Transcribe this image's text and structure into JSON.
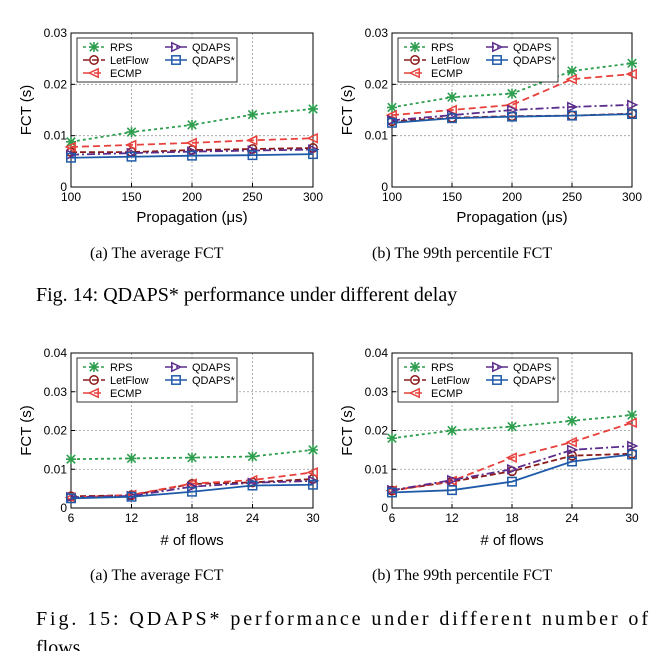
{
  "figures": [
    {
      "caption": "Fig. 14: QDAPS* performance under different delay"
    },
    {
      "caption_line1": "Fig. 15: QDAPS* performance under different number of",
      "caption_line2": "flows"
    }
  ],
  "chart_data": [
    {
      "type": "line",
      "subcaption": "(a) The average FCT",
      "xlabel": "Propagation (μs)",
      "ylabel": "FCT (s)",
      "x": [
        100,
        150,
        200,
        250,
        300
      ],
      "xlim": [
        100,
        300
      ],
      "ylim": [
        0,
        0.03
      ],
      "yticks": [
        0,
        0.01,
        0.02,
        0.03
      ],
      "ytick_labels": [
        "0",
        "0.01",
        "0.02",
        "0.03"
      ],
      "grid": true,
      "legend": "top-left",
      "series": [
        {
          "name": "RPS",
          "marker": "x",
          "color": "#2e9e4f",
          "dash": "3,3",
          "values": [
            0.0088,
            0.0107,
            0.0121,
            0.0141,
            0.0152
          ]
        },
        {
          "name": "LetFlow",
          "marker": "circle",
          "color": "#8b1a1a",
          "dash": "6,3",
          "values": [
            0.0068,
            0.0068,
            0.0072,
            0.0074,
            0.0076
          ]
        },
        {
          "name": "ECMP",
          "marker": "triangle-left",
          "color": "#e8413c",
          "dash": "7,4",
          "values": [
            0.0078,
            0.0082,
            0.0086,
            0.0091,
            0.0095
          ]
        },
        {
          "name": "QDAPS",
          "marker": "triangle-right",
          "color": "#5b2c8c",
          "dash": "8,3,2,3",
          "values": [
            0.0063,
            0.0066,
            0.0069,
            0.0071,
            0.0073
          ]
        },
        {
          "name": "QDAPS*",
          "marker": "square",
          "color": "#1f5aa8",
          "dash": "",
          "values": [
            0.0057,
            0.0059,
            0.0061,
            0.0062,
            0.0064
          ]
        }
      ]
    },
    {
      "type": "line",
      "subcaption": "(b) The 99th percentile FCT",
      "xlabel": "Propagation (μs)",
      "ylabel": "FCT (s)",
      "x": [
        100,
        150,
        200,
        250,
        300
      ],
      "xlim": [
        100,
        300
      ],
      "ylim": [
        0,
        0.03
      ],
      "yticks": [
        0,
        0.01,
        0.02,
        0.03
      ],
      "ytick_labels": [
        "0",
        "0.01",
        "0.02",
        "0.03"
      ],
      "grid": true,
      "legend": "top-left",
      "series": [
        {
          "name": "RPS",
          "marker": "x",
          "color": "#2e9e4f",
          "dash": "3,3",
          "values": [
            0.0155,
            0.0175,
            0.0182,
            0.0226,
            0.0241
          ]
        },
        {
          "name": "LetFlow",
          "marker": "circle",
          "color": "#8b1a1a",
          "dash": "6,3",
          "values": [
            0.0128,
            0.0135,
            0.0138,
            0.0139,
            0.0143
          ]
        },
        {
          "name": "ECMP",
          "marker": "triangle-left",
          "color": "#e8413c",
          "dash": "7,4",
          "values": [
            0.014,
            0.015,
            0.016,
            0.021,
            0.022
          ]
        },
        {
          "name": "QDAPS",
          "marker": "triangle-right",
          "color": "#5b2c8c",
          "dash": "8,3,2,3",
          "values": [
            0.013,
            0.014,
            0.015,
            0.0156,
            0.016
          ]
        },
        {
          "name": "QDAPS*",
          "marker": "square",
          "color": "#1f5aa8",
          "dash": "",
          "values": [
            0.0125,
            0.0134,
            0.0137,
            0.0139,
            0.0142
          ]
        }
      ]
    },
    {
      "type": "line",
      "subcaption": "(a) The average FCT",
      "xlabel": "# of flows",
      "ylabel": "FCT (s)",
      "x": [
        6,
        12,
        18,
        24,
        30
      ],
      "xlim": [
        6,
        30
      ],
      "ylim": [
        0,
        0.04
      ],
      "yticks": [
        0,
        0.01,
        0.02,
        0.03,
        0.04
      ],
      "ytick_labels": [
        "0",
        "0.01",
        "0.02",
        "0.03",
        "0.04"
      ],
      "grid": true,
      "legend": "top-left",
      "series": [
        {
          "name": "RPS",
          "marker": "x",
          "color": "#2e9e4f",
          "dash": "3,3",
          "values": [
            0.0126,
            0.0128,
            0.013,
            0.0133,
            0.015
          ]
        },
        {
          "name": "LetFlow",
          "marker": "circle",
          "color": "#8b1a1a",
          "dash": "6,3",
          "values": [
            0.003,
            0.0033,
            0.0062,
            0.0066,
            0.0075
          ]
        },
        {
          "name": "ECMP",
          "marker": "triangle-left",
          "color": "#e8413c",
          "dash": "7,4",
          "values": [
            0.0027,
            0.0034,
            0.0063,
            0.0072,
            0.0092
          ]
        },
        {
          "name": "QDAPS",
          "marker": "triangle-right",
          "color": "#5b2c8c",
          "dash": "8,3,2,3",
          "values": [
            0.0028,
            0.0031,
            0.0055,
            0.0065,
            0.007
          ]
        },
        {
          "name": "QDAPS*",
          "marker": "square",
          "color": "#1f5aa8",
          "dash": "",
          "values": [
            0.0025,
            0.0029,
            0.0042,
            0.0058,
            0.006
          ]
        }
      ]
    },
    {
      "type": "line",
      "subcaption": "(b) The 99th percentile FCT",
      "xlabel": "# of flows",
      "ylabel": "FCT (s)",
      "x": [
        6,
        12,
        18,
        24,
        30
      ],
      "xlim": [
        6,
        30
      ],
      "ylim": [
        0,
        0.04
      ],
      "yticks": [
        0,
        0.01,
        0.02,
        0.03,
        0.04
      ],
      "ytick_labels": [
        "0",
        "0.01",
        "0.02",
        "0.03",
        "0.04"
      ],
      "grid": true,
      "legend": "top-left",
      "series": [
        {
          "name": "RPS",
          "marker": "x",
          "color": "#2e9e4f",
          "dash": "3,3",
          "values": [
            0.018,
            0.02,
            0.021,
            0.0225,
            0.024
          ]
        },
        {
          "name": "LetFlow",
          "marker": "circle",
          "color": "#8b1a1a",
          "dash": "6,3",
          "values": [
            0.0045,
            0.0068,
            0.0095,
            0.0135,
            0.014
          ]
        },
        {
          "name": "ECMP",
          "marker": "triangle-left",
          "color": "#e8413c",
          "dash": "7,4",
          "values": [
            0.0045,
            0.007,
            0.013,
            0.017,
            0.022
          ]
        },
        {
          "name": "QDAPS",
          "marker": "triangle-right",
          "color": "#5b2c8c",
          "dash": "8,3,2,3",
          "values": [
            0.0046,
            0.0072,
            0.01,
            0.015,
            0.016
          ]
        },
        {
          "name": "QDAPS*",
          "marker": "square",
          "color": "#1f5aa8",
          "dash": "",
          "values": [
            0.004,
            0.0046,
            0.0068,
            0.012,
            0.0138
          ]
        }
      ]
    }
  ]
}
